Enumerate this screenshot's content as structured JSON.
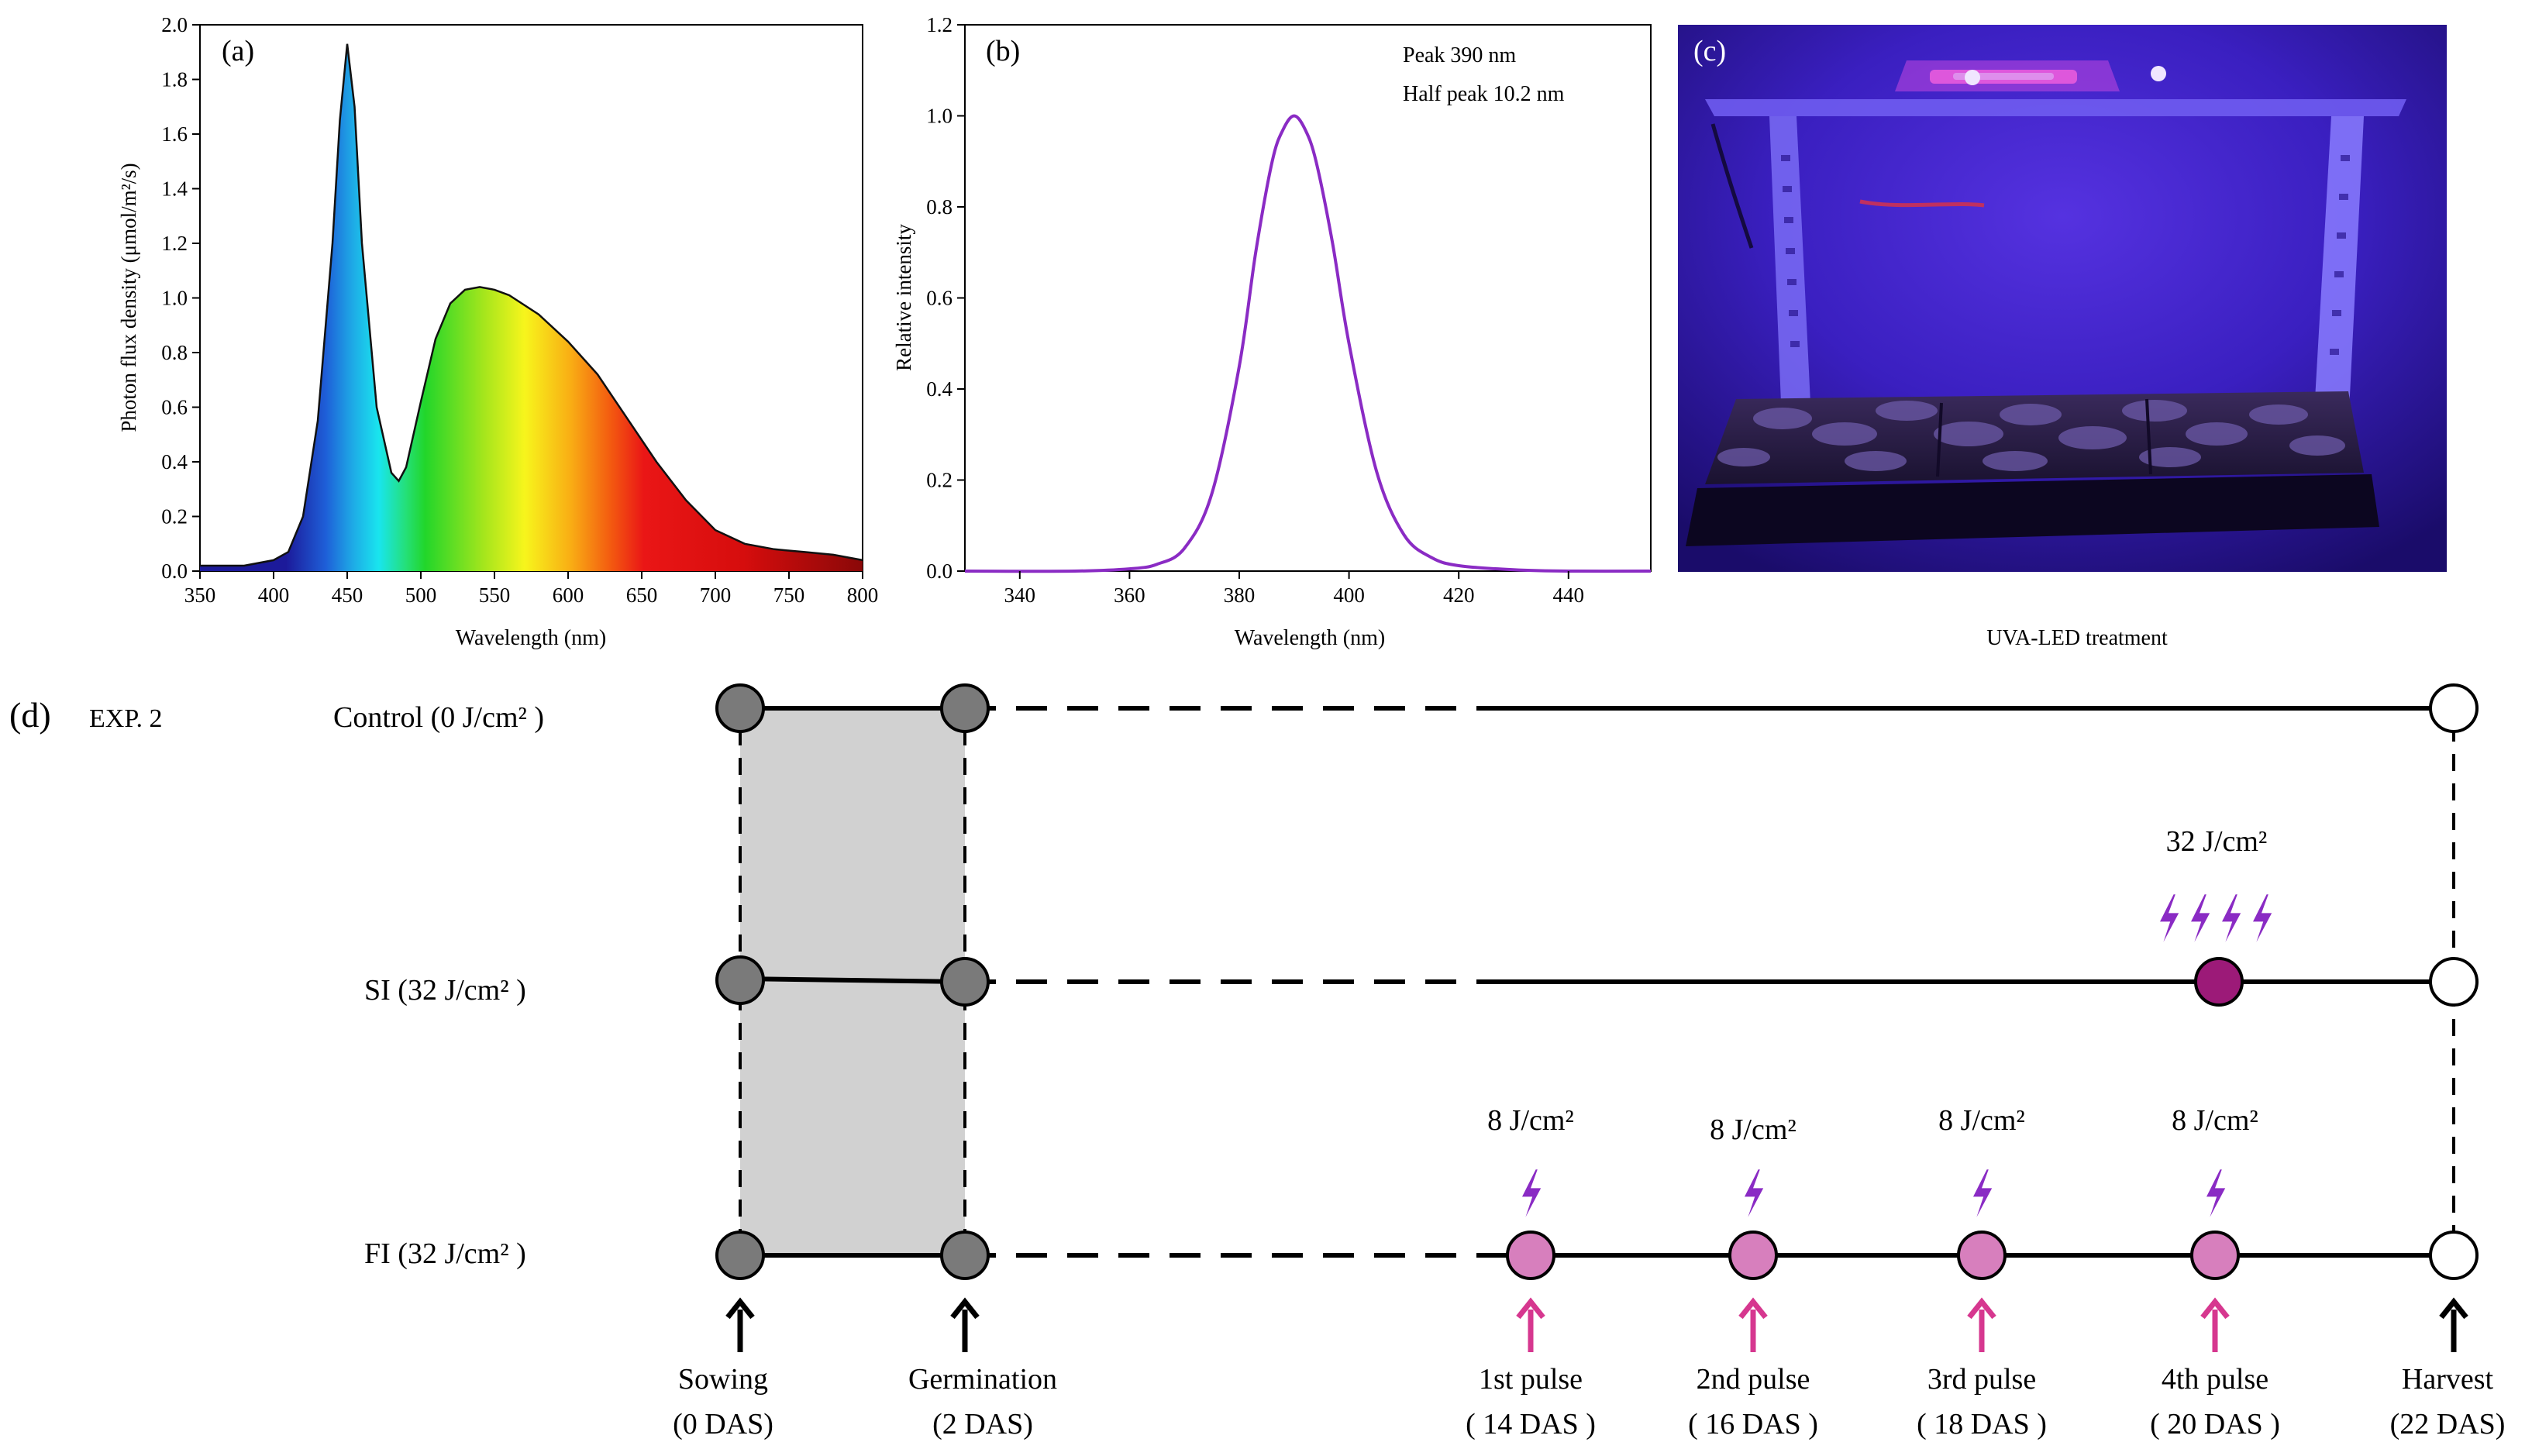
{
  "panel_a": {
    "tag": "(a)",
    "xlabel": "Wavelength (nm)",
    "ylabel": "Photon flux density (μmol/m²/s)",
    "xticks": [
      350,
      400,
      450,
      500,
      550,
      600,
      650,
      700,
      750,
      800
    ],
    "yticks": [
      "0.0",
      "0.2",
      "0.4",
      "0.6",
      "0.8",
      "1.0",
      "1.2",
      "1.4",
      "1.6",
      "1.8",
      "2.0"
    ]
  },
  "panel_b": {
    "tag": "(b)",
    "xlabel": "Wavelength (nm)",
    "ylabel": "Relative intensity",
    "annotation_1": "Peak 390 nm",
    "annotation_2": "Half peak 10.2 nm",
    "xticks": [
      340,
      360,
      380,
      400,
      420,
      440
    ],
    "yticks": [
      "0.0",
      "0.2",
      "0.4",
      "0.6",
      "0.8",
      "1.0",
      "1.2"
    ]
  },
  "panel_c": {
    "tag": "(c)",
    "caption": "UVA-LED treatment"
  },
  "panel_d": {
    "tag": "(d)",
    "exp_label": "EXP. 2",
    "rows": {
      "control": "Control (0 J/cm² )",
      "si": "SI (32 J/cm² )",
      "fi": "FI (32 J/cm² )"
    },
    "si_dose": "32 J/cm²",
    "fi_doses": [
      "8 J/cm²",
      "8 J/cm²",
      "8 J/cm²",
      "8 J/cm²"
    ],
    "events": [
      {
        "name": "Sowing",
        "day": "(0 DAS)"
      },
      {
        "name": "Germination",
        "day": "(2 DAS)"
      },
      {
        "name": "1st pulse",
        "day": "( 14 DAS )"
      },
      {
        "name": "2nd pulse",
        "day": "( 16 DAS )"
      },
      {
        "name": "3rd pulse",
        "day": "( 18 DAS )"
      },
      {
        "name": "4th pulse",
        "day": "( 20 DAS )"
      },
      {
        "name": "Harvest",
        "day": "(22 DAS)"
      }
    ]
  },
  "chart_data": [
    {
      "type": "area",
      "title": "(a)",
      "xlabel": "Wavelength (nm)",
      "ylabel": "Photon flux density (μmol/m²/s)",
      "xlim": [
        350,
        800
      ],
      "ylim": [
        0,
        2.0
      ],
      "x": [
        350,
        380,
        400,
        410,
        420,
        430,
        440,
        445,
        450,
        455,
        460,
        470,
        480,
        485,
        490,
        500,
        510,
        520,
        530,
        540,
        550,
        560,
        580,
        600,
        620,
        640,
        660,
        680,
        700,
        720,
        740,
        760,
        780,
        800
      ],
      "values": [
        0.02,
        0.02,
        0.04,
        0.07,
        0.2,
        0.55,
        1.2,
        1.65,
        1.93,
        1.7,
        1.2,
        0.6,
        0.36,
        0.33,
        0.38,
        0.62,
        0.85,
        0.98,
        1.03,
        1.04,
        1.03,
        1.01,
        0.94,
        0.84,
        0.72,
        0.56,
        0.4,
        0.26,
        0.15,
        0.1,
        0.08,
        0.07,
        0.06,
        0.04
      ]
    },
    {
      "type": "line",
      "title": "(b)",
      "xlabel": "Wavelength (nm)",
      "ylabel": "Relative intensity",
      "xlim": [
        330,
        455
      ],
      "ylim": [
        0,
        1.2
      ],
      "series": [
        {
          "name": "UVA-LED",
          "x": [
            330,
            350,
            360,
            365,
            370,
            375,
            380,
            383,
            386,
            388,
            390,
            392,
            394,
            397,
            400,
            405,
            410,
            415,
            420,
            430,
            440,
            455
          ],
          "values": [
            0,
            0,
            0.005,
            0.015,
            0.05,
            0.17,
            0.45,
            0.7,
            0.9,
            0.97,
            1.0,
            0.97,
            0.9,
            0.72,
            0.5,
            0.22,
            0.08,
            0.03,
            0.012,
            0.003,
            0,
            0
          ]
        }
      ]
    }
  ]
}
